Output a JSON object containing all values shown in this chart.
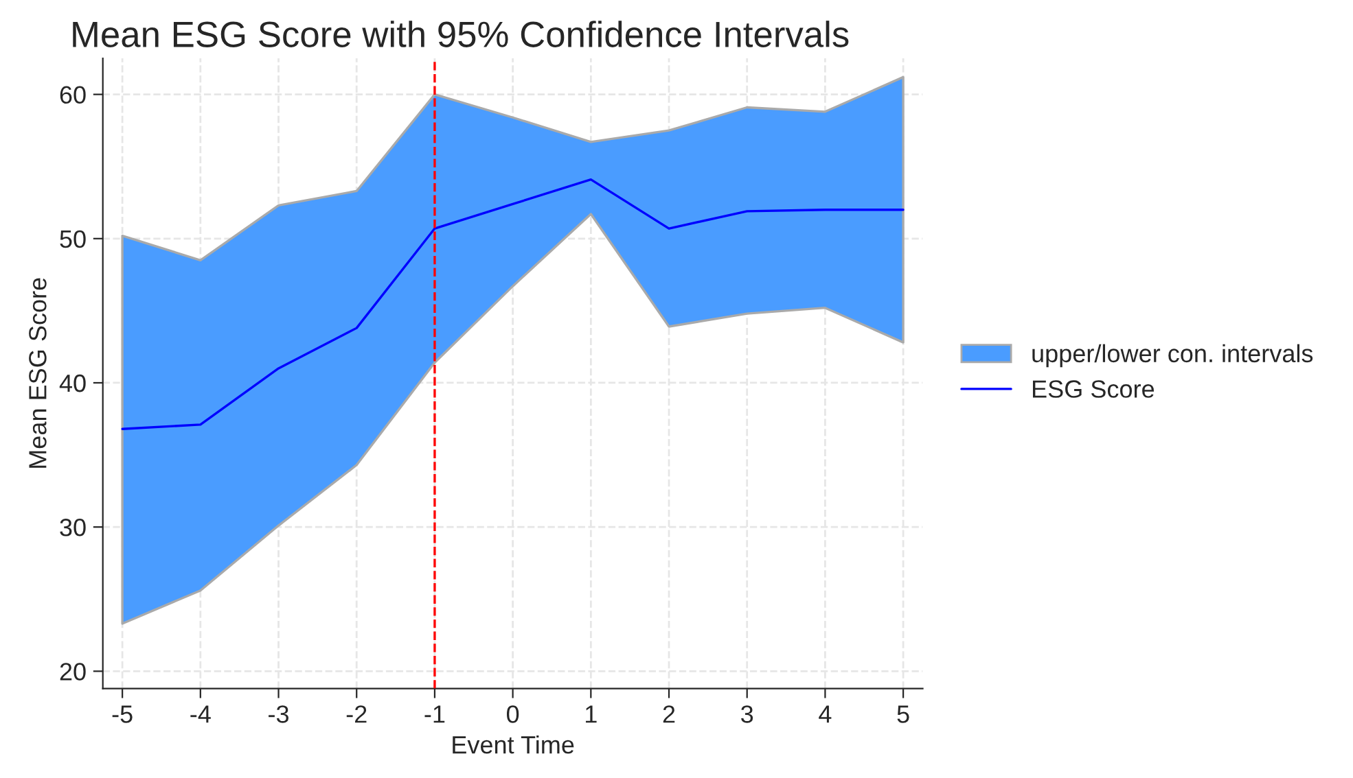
{
  "chart_data": {
    "type": "line",
    "title": "Mean ESG Score with 95% Confidence Intervals",
    "xlabel": "Event Time",
    "ylabel": "Mean ESG Score",
    "x": [
      -5,
      -4,
      -3,
      -2,
      -1,
      0,
      1,
      2,
      3,
      4,
      5
    ],
    "series": [
      {
        "name": "upper/lower con. intervals",
        "type": "line",
        "color": "#4a9cff",
        "values": [
          null,
          null,
          null,
          null,
          null,
          null,
          null,
          null,
          null,
          null,
          null
        ],
        "lower": [
          23.3,
          25.6,
          30.1,
          34.3,
          41.4,
          46.7,
          51.7,
          43.9,
          44.8,
          45.2,
          42.8
        ],
        "upper": [
          50.2,
          48.5,
          52.3,
          53.3,
          60.0,
          58.4,
          56.7,
          57.5,
          59.1,
          58.8,
          61.2
        ]
      },
      {
        "name": "ESG Score",
        "type": "line",
        "color": "#0000ff",
        "values": [
          36.8,
          37.1,
          41.0,
          43.8,
          50.7,
          52.4,
          54.1,
          50.7,
          51.9,
          52.0,
          52.0
        ]
      }
    ],
    "xlim": [
      -5.25,
      5.25
    ],
    "ylim": [
      18.8,
      62.5
    ],
    "xticks": [
      -5,
      -4,
      -3,
      -2,
      -1,
      0,
      1,
      2,
      3,
      4,
      5
    ],
    "yticks": [
      20,
      30,
      40,
      50,
      60
    ],
    "ref_lines": [
      {
        "axis": "x",
        "value": -1,
        "color": "#ff0000",
        "line_style": "dashed"
      }
    ],
    "grid": true,
    "legend": "right"
  }
}
